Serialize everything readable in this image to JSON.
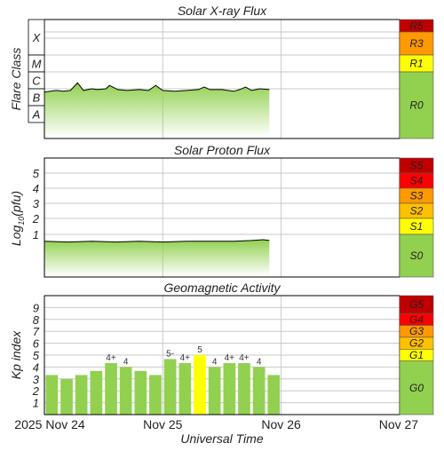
{
  "colors": {
    "background": "#ffffff",
    "grid": "#c8c8c8",
    "bar_normal": "#92d050",
    "bar_g1": "#ffff00",
    "flux_line": "#000000",
    "scale_green": "#92d050",
    "scale_yellow": "#ffff00",
    "scale_orange": "#ffc000",
    "scale_darkorange": "#ff9900",
    "scale_red": "#ff0000",
    "scale_darkred": "#c00000"
  },
  "x_axis": {
    "label": "Universal Time",
    "ticks": [
      "2025 Nov 24",
      "Nov 25",
      "Nov 26",
      "Nov 27"
    ]
  },
  "panels": {
    "xray": {
      "title": "Solar X-ray Flux",
      "ylabel": "Flare Class",
      "classes": [
        "X",
        "M",
        "C",
        "B",
        "A"
      ],
      "scale": [
        "R5",
        "R3",
        "R1",
        "R0"
      ]
    },
    "proton": {
      "title": "Solar Proton Flux",
      "ylabel_main": "Log",
      "ylabel_sub": "10",
      "ylabel_tail": "(pfu)",
      "ticks": [
        "5",
        "4",
        "3",
        "2",
        "1"
      ],
      "scale": [
        "S5",
        "S4",
        "S3",
        "S2",
        "S1",
        "S0"
      ]
    },
    "geomag": {
      "title": "Geomagnetic Activity",
      "ylabel": "Kp index",
      "ticks": [
        "9",
        "8",
        "7",
        "6",
        "5",
        "4",
        "3",
        "2",
        "1"
      ],
      "scale": [
        "G5",
        "G4",
        "G3",
        "G2",
        "G1",
        "G0"
      ]
    }
  },
  "chart_data": [
    {
      "type": "line",
      "title": "Solar X-ray Flux",
      "ylabel": "Flare Class",
      "y_scale": "log",
      "y_categories": [
        "A",
        "B",
        "C",
        "M",
        "X"
      ],
      "x_range_days": [
        "2025-11-24",
        "2025-11-27"
      ],
      "series": [
        {
          "values": [
            [
              0.0,
              1.8
            ],
            [
              0.05,
              1.85
            ],
            [
              0.1,
              1.9
            ],
            [
              0.16,
              1.85
            ],
            [
              0.22,
              1.9
            ],
            [
              0.28,
              2.35
            ],
            [
              0.33,
              1.9
            ],
            [
              0.4,
              2.0
            ],
            [
              0.45,
              1.95
            ],
            [
              0.52,
              2.0
            ],
            [
              0.55,
              2.2
            ],
            [
              0.62,
              1.95
            ],
            [
              0.7,
              1.9
            ],
            [
              0.8,
              1.95
            ],
            [
              0.88,
              1.9
            ],
            [
              0.94,
              2.2
            ],
            [
              1.0,
              1.9
            ],
            [
              1.1,
              1.85
            ],
            [
              1.2,
              1.9
            ],
            [
              1.3,
              1.95
            ],
            [
              1.35,
              2.1
            ],
            [
              1.4,
              1.95
            ],
            [
              1.5,
              1.95
            ],
            [
              1.6,
              1.85
            ],
            [
              1.65,
              1.95
            ],
            [
              1.7,
              2.1
            ],
            [
              1.75,
              1.9
            ],
            [
              1.82,
              2.0
            ],
            [
              1.9,
              1.95
            ]
          ]
        }
      ]
    },
    {
      "type": "line",
      "title": "Solar Proton Flux",
      "y_scale": "log",
      "ylim": [
        -1,
        5.9
      ],
      "x_range_days": [
        "2025-11-24",
        "2025-11-27"
      ],
      "series": [
        {
          "values": [
            [
              0.0,
              -0.05
            ],
            [
              0.2,
              -0.1
            ],
            [
              0.4,
              -0.05
            ],
            [
              0.6,
              -0.1
            ],
            [
              0.8,
              -0.05
            ],
            [
              1.0,
              -0.1
            ],
            [
              1.2,
              -0.05
            ],
            [
              1.4,
              -0.05
            ],
            [
              1.6,
              -0.05
            ],
            [
              1.75,
              0.0
            ],
            [
              1.85,
              0.05
            ],
            [
              1.9,
              0.0
            ]
          ]
        }
      ]
    },
    {
      "type": "bar",
      "title": "Geomagnetic Activity",
      "ylabel": "Kp index",
      "ylim": [
        0,
        10
      ],
      "categories": [
        "2025-11-24 00",
        "2025-11-24 03",
        "2025-11-24 06",
        "2025-11-24 09",
        "2025-11-24 12",
        "2025-11-24 15",
        "2025-11-24 18",
        "2025-11-24 21",
        "2025-11-25 00",
        "2025-11-25 03",
        "2025-11-25 06",
        "2025-11-25 09",
        "2025-11-25 12",
        "2025-11-25 15",
        "2025-11-25 18",
        "2025-11-25 21"
      ],
      "values": [
        3.33,
        3.0,
        3.33,
        3.67,
        4.33,
        4.0,
        3.67,
        3.33,
        4.67,
        4.33,
        5.0,
        4.0,
        4.33,
        4.33,
        4.0,
        3.33
      ],
      "labels": [
        "",
        "",
        "",
        "",
        "4+",
        "4",
        "",
        "",
        "5-",
        "4+",
        "5",
        "4",
        "4+",
        "4+",
        "4",
        ""
      ]
    }
  ]
}
